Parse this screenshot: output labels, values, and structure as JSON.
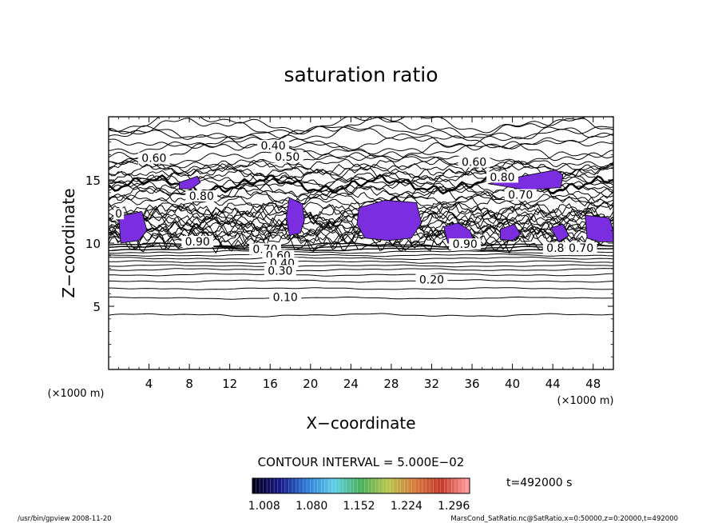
{
  "chart_data": {
    "type": "contour",
    "title": "saturation ratio",
    "xlabel": "X−coordinate",
    "ylabel": "Z−coordinate",
    "x_unit_left": "(×1000 m)",
    "x_unit_right": "(×1000 m)",
    "xlim": [
      0,
      50
    ],
    "ylim": [
      0,
      20
    ],
    "xticks": [
      4,
      8,
      12,
      16,
      20,
      24,
      28,
      32,
      36,
      40,
      44,
      48
    ],
    "yticks": [
      5,
      10,
      15
    ],
    "contour_interval_text": "CONTOUR INTERVAL = 5.000E−02",
    "time_text": "t=492000 s",
    "colorbar": {
      "ticks": [
        "1.008",
        "1.080",
        "1.152",
        "1.224",
        "1.296"
      ],
      "range": [
        0.99,
        1.32
      ],
      "colors": [
        "#000020",
        "#1a1a8c",
        "#2f7ddc",
        "#5fd0e6",
        "#49b05a",
        "#b7c64a",
        "#d57a3c",
        "#c43a2a",
        "#ff9a9a"
      ]
    },
    "contour_labels": [
      {
        "x": 1.0,
        "y": 12.2,
        "text": "0"
      },
      {
        "x": 4.5,
        "y": 16.6,
        "text": "0.60"
      },
      {
        "x": 16.3,
        "y": 17.6,
        "text": "0.40"
      },
      {
        "x": 17.7,
        "y": 16.7,
        "text": "0.50"
      },
      {
        "x": 9.2,
        "y": 13.6,
        "text": "0.80"
      },
      {
        "x": 8.8,
        "y": 10.0,
        "text": "0.90"
      },
      {
        "x": 15.5,
        "y": 9.4,
        "text": "0.70"
      },
      {
        "x": 16.8,
        "y": 8.9,
        "text": "0.60"
      },
      {
        "x": 17.2,
        "y": 8.3,
        "text": "0.40"
      },
      {
        "x": 17.0,
        "y": 7.7,
        "text": "0.30"
      },
      {
        "x": 32.0,
        "y": 7.0,
        "text": "0.20"
      },
      {
        "x": 17.5,
        "y": 5.6,
        "text": "0.10"
      },
      {
        "x": 36.2,
        "y": 16.3,
        "text": "0.60"
      },
      {
        "x": 39.0,
        "y": 15.1,
        "text": "0.80"
      },
      {
        "x": 35.3,
        "y": 9.8,
        "text": "0.90"
      },
      {
        "x": 44.6,
        "y": 9.5,
        "text": "0.80"
      },
      {
        "x": 46.8,
        "y": 9.5,
        "text": "0.70"
      },
      {
        "x": 40.8,
        "y": 13.7,
        "text": "0.70"
      }
    ],
    "supersaturated_regions": [
      {
        "value": 1.02,
        "outline": [
          [
            1.0,
            12.1
          ],
          [
            3.3,
            12.5
          ],
          [
            3.8,
            11.0
          ],
          [
            3.0,
            10.2
          ],
          [
            1.2,
            10.0
          ]
        ]
      },
      {
        "value": 1.02,
        "outline": [
          [
            7.0,
            14.8
          ],
          [
            8.8,
            15.3
          ],
          [
            9.1,
            14.8
          ],
          [
            8.2,
            14.3
          ],
          [
            7.0,
            14.3
          ]
        ]
      },
      {
        "value": 1.02,
        "outline": [
          [
            17.9,
            13.6
          ],
          [
            19.2,
            13.1
          ],
          [
            19.4,
            11.8
          ],
          [
            19.0,
            10.8
          ],
          [
            17.9,
            10.6
          ],
          [
            17.6,
            12.1
          ]
        ]
      },
      {
        "value": 1.03,
        "outline": [
          [
            24.8,
            12.8
          ],
          [
            27.4,
            13.4
          ],
          [
            30.5,
            13.2
          ],
          [
            31.0,
            11.6
          ],
          [
            30.0,
            10.4
          ],
          [
            27.7,
            10.2
          ],
          [
            25.4,
            10.4
          ],
          [
            24.6,
            11.5
          ]
        ]
      },
      {
        "value": 1.02,
        "outline": [
          [
            33.2,
            11.3
          ],
          [
            34.6,
            11.6
          ],
          [
            35.8,
            11.0
          ],
          [
            36.2,
            10.1
          ],
          [
            35.0,
            9.9
          ],
          [
            33.6,
            10.0
          ]
        ]
      },
      {
        "value": 1.03,
        "outline": [
          [
            37.6,
            14.7
          ],
          [
            41.0,
            15.3
          ],
          [
            44.3,
            15.8
          ],
          [
            45.0,
            15.4
          ],
          [
            44.8,
            14.4
          ],
          [
            41.4,
            14.2
          ]
        ]
      },
      {
        "value": 1.02,
        "outline": [
          [
            38.8,
            11.1
          ],
          [
            40.2,
            11.5
          ],
          [
            40.8,
            10.7
          ],
          [
            40.0,
            10.2
          ],
          [
            38.8,
            10.3
          ]
        ]
      },
      {
        "value": 1.02,
        "outline": [
          [
            43.8,
            11.2
          ],
          [
            45.0,
            11.5
          ],
          [
            45.6,
            10.6
          ],
          [
            44.6,
            10.1
          ]
        ]
      },
      {
        "value": 1.02,
        "outline": [
          [
            47.2,
            12.2
          ],
          [
            49.6,
            12.0
          ],
          [
            50.0,
            11.0
          ],
          [
            50.0,
            10.1
          ],
          [
            48.6,
            10.1
          ],
          [
            47.4,
            10.4
          ]
        ]
      }
    ]
  },
  "footer": {
    "left": "/usr/bin/gpview   2008-11-20",
    "right": "MarsCond_SatRatio.nc@SatRatio,x=0:50000,z=0:20000,t=492000"
  }
}
